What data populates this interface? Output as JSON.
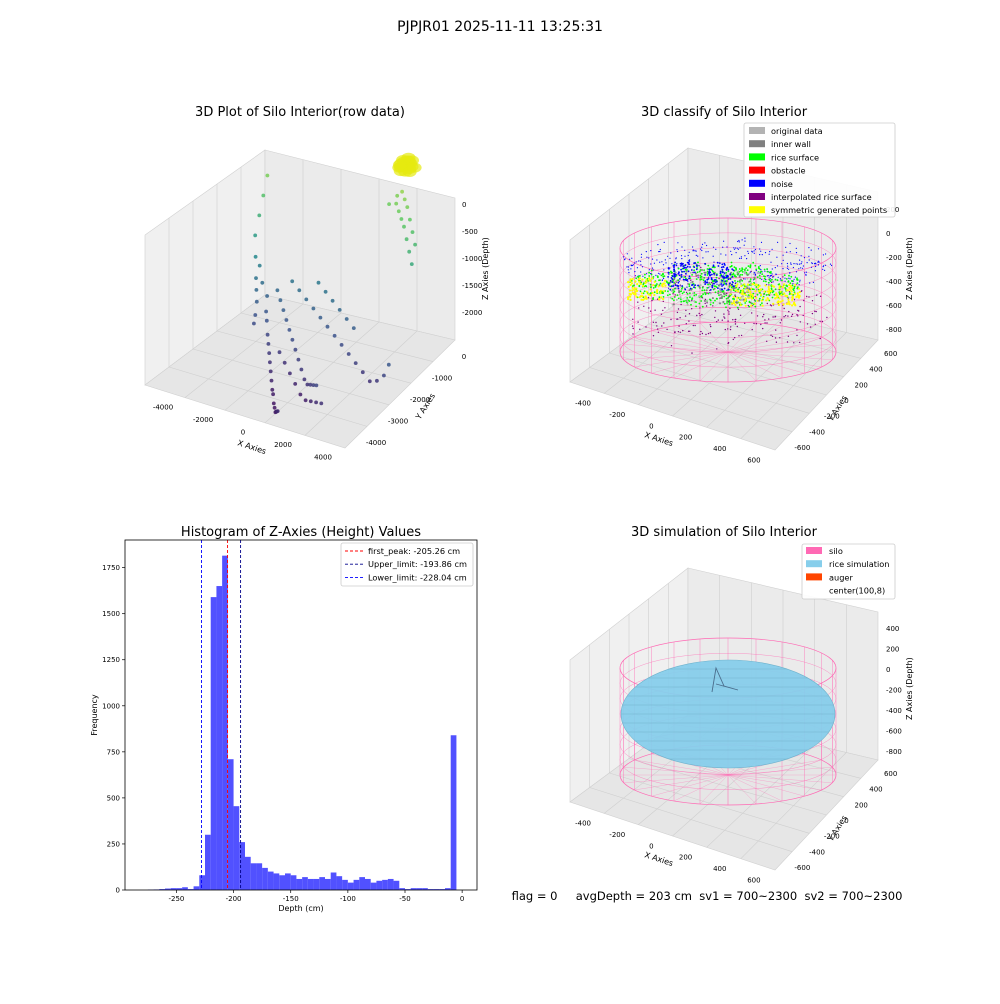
{
  "figure": {
    "suptitle": "PJPJR01 2025-11-11 13:25:31",
    "status_line": "flag = 0     avgDepth = 203 cm  sv1 = 700~2300  sv2 = 700~2300"
  },
  "chart_data": [
    {
      "id": "raw3d",
      "type": "scatter",
      "title": "3D Plot of Silo Interior(row data)",
      "xlabel": "X Axies",
      "ylabel": "Y Axies",
      "zlabel": "Z Axies (Depth)",
      "x_ticks": [
        "-4000",
        "-2000",
        "0",
        "2000",
        "4000"
      ],
      "y_ticks": [
        "-4000",
        "-3000",
        "-2000",
        "-1000",
        "0"
      ],
      "z_ticks": [
        "0",
        "-500",
        "-1000",
        "-1500",
        "-2000"
      ],
      "zlim": [
        -2300,
        100
      ],
      "colormap": "viridis",
      "points": [
        [
          -3200,
          600,
          -400
        ],
        [
          -3300,
          500,
          -600
        ],
        [
          -3400,
          400,
          -800
        ],
        [
          -3500,
          300,
          -1000
        ],
        [
          -3400,
          200,
          -1200
        ],
        [
          -3300,
          100,
          -1400
        ],
        [
          -3200,
          0,
          -1500
        ],
        [
          -3100,
          -100,
          -1600
        ],
        [
          -3000,
          -300,
          -1700
        ],
        [
          -2900,
          -500,
          -1750
        ],
        [
          -3300,
          300,
          -1300
        ],
        [
          -3100,
          200,
          -1450
        ],
        [
          -2800,
          100,
          -1550
        ],
        [
          -2600,
          -200,
          -1650
        ],
        [
          -2400,
          -400,
          -1700
        ],
        [
          -2200,
          -600,
          -1800
        ],
        [
          -2000,
          -800,
          -1850
        ],
        [
          -1800,
          -1000,
          -1900
        ],
        [
          -1600,
          -1200,
          -1950
        ],
        [
          -1400,
          -1400,
          -2000
        ],
        [
          -1200,
          -1600,
          -2050
        ],
        [
          -1000,
          -1800,
          -2100
        ],
        [
          -800,
          -2000,
          -2100
        ],
        [
          -600,
          -2200,
          -2150
        ],
        [
          -400,
          -2400,
          -2150
        ],
        [
          -200,
          -2600,
          -2150
        ],
        [
          0,
          -2800,
          -2100
        ],
        [
          200,
          -3000,
          -2050
        ],
        [
          400,
          -3200,
          -2000
        ],
        [
          -2500,
          300,
          -1500
        ],
        [
          -2200,
          100,
          -1550
        ],
        [
          -1900,
          -100,
          -1600
        ],
        [
          -1600,
          -300,
          -1650
        ],
        [
          -1300,
          -500,
          -1700
        ],
        [
          -1000,
          -700,
          -1750
        ],
        [
          -700,
          -900,
          -1800
        ],
        [
          -400,
          -1100,
          -1850
        ],
        [
          -100,
          -1300,
          -1900
        ],
        [
          200,
          -1500,
          -1950
        ],
        [
          500,
          -1700,
          -1950
        ],
        [
          800,
          -1900,
          -1900
        ],
        [
          1100,
          -2100,
          -1850
        ],
        [
          1400,
          -2300,
          -1800
        ],
        [
          -2000,
          500,
          -1400
        ],
        [
          -1600,
          400,
          -1450
        ],
        [
          -1200,
          300,
          -1500
        ],
        [
          -800,
          200,
          -1550
        ],
        [
          -400,
          100,
          -1600
        ],
        [
          0,
          0,
          -1650
        ],
        [
          400,
          -100,
          -1700
        ],
        [
          800,
          -200,
          -1750
        ],
        [
          1200,
          -300,
          -1800
        ],
        [
          1600,
          -400,
          -1850
        ],
        [
          2000,
          -500,
          -1900
        ],
        [
          2400,
          -600,
          -1950
        ],
        [
          2800,
          -700,
          -1900
        ],
        [
          3200,
          -800,
          -1800
        ],
        [
          3500,
          -900,
          -1650
        ],
        [
          -1500,
          -800,
          -1900
        ],
        [
          -1100,
          -1000,
          -1950
        ],
        [
          -700,
          -1200,
          -2000
        ],
        [
          -300,
          -1400,
          -2050
        ],
        [
          100,
          -1600,
          -2100
        ],
        [
          500,
          -1800,
          -2100
        ],
        [
          900,
          -2000,
          -2050
        ],
        [
          1300,
          -2200,
          -2000
        ],
        [
          1700,
          -2400,
          -1950
        ],
        [
          -900,
          600,
          -1350
        ],
        [
          -500,
          500,
          -1400
        ],
        [
          -100,
          400,
          -1450
        ],
        [
          300,
          300,
          -1500
        ],
        [
          700,
          200,
          -1550
        ],
        [
          1100,
          100,
          -1600
        ],
        [
          2100,
          1200,
          -400
        ],
        [
          2300,
          1100,
          -450
        ],
        [
          2500,
          1000,
          -500
        ],
        [
          2700,
          900,
          -550
        ],
        [
          2900,
          800,
          -650
        ],
        [
          3100,
          700,
          -750
        ],
        [
          3300,
          600,
          -850
        ],
        [
          2200,
          1400,
          -300
        ],
        [
          2400,
          1300,
          -350
        ],
        [
          2600,
          1200,
          -400
        ],
        [
          1900,
          1500,
          -380
        ],
        [
          2800,
          1100,
          -500
        ],
        [
          3000,
          1000,
          -600
        ],
        [
          1700,
          1300,
          -450
        ],
        [
          3200,
          900,
          -700
        ]
      ],
      "blob_points": [
        [
          2000,
          1600,
          -50
        ],
        [
          2100,
          1650,
          -30
        ],
        [
          2200,
          1700,
          -20
        ],
        [
          2300,
          1650,
          -10
        ],
        [
          2400,
          1600,
          -20
        ],
        [
          2500,
          1550,
          -40
        ],
        [
          2050,
          1500,
          -70
        ],
        [
          2150,
          1550,
          -60
        ],
        [
          2250,
          1600,
          -50
        ],
        [
          2350,
          1550,
          -40
        ],
        [
          2450,
          1500,
          -60
        ],
        [
          1950,
          1550,
          -90
        ],
        [
          2100,
          1450,
          -100
        ],
        [
          2300,
          1450,
          -90
        ],
        [
          2500,
          1450,
          -80
        ],
        [
          2200,
          1750,
          0
        ],
        [
          2400,
          1700,
          -5
        ],
        [
          2000,
          1700,
          -30
        ],
        [
          2600,
          1600,
          -50
        ],
        [
          1900,
          1650,
          -80
        ]
      ]
    },
    {
      "id": "classify3d",
      "type": "scatter",
      "title": "3D classify of Silo Interior",
      "xlabel": "X Axies",
      "ylabel": "Y Axies",
      "zlabel": "Z Axies (Depth)",
      "x_ticks": [
        "-400",
        "-200",
        "0",
        "200",
        "400",
        "600"
      ],
      "y_ticks": [
        "-600",
        "-400",
        "-200",
        "0",
        "200",
        "400",
        "600"
      ],
      "z_ticks": [
        "200",
        "0",
        "-200",
        "-400",
        "-600",
        "-800"
      ],
      "legend_position": "top-right",
      "legend": [
        {
          "label": "original data",
          "color": "#b3b3b3"
        },
        {
          "label": "inner wall",
          "color": "#808080"
        },
        {
          "label": "rice surface",
          "color": "#00ff00"
        },
        {
          "label": "obstacle",
          "color": "#ff0000"
        },
        {
          "label": "noise",
          "color": "#0000ff"
        },
        {
          "label": "interpolated rice surface",
          "color": "#800080"
        },
        {
          "label": "symmetric generated points",
          "color": "#ffff00"
        }
      ],
      "silo_color": "#ff69b4"
    },
    {
      "id": "hist",
      "type": "bar",
      "title": "Histogram of Z-Axies (Height) Values",
      "xlabel": "Depth (cm)",
      "ylabel": "Frequency",
      "xlim": [
        -295,
        13
      ],
      "ylim": [
        0,
        1900
      ],
      "x_ticks": [
        -250,
        -200,
        -150,
        -100,
        -50,
        0
      ],
      "y_ticks": [
        0,
        250,
        500,
        750,
        1000,
        1250,
        1500,
        1750
      ],
      "bin_width": 5,
      "bins": [
        [
          -280,
          0
        ],
        [
          -275,
          2
        ],
        [
          -270,
          3
        ],
        [
          -265,
          5
        ],
        [
          -260,
          8
        ],
        [
          -255,
          10
        ],
        [
          -250,
          10
        ],
        [
          -245,
          15
        ],
        [
          -240,
          5
        ],
        [
          -235,
          20
        ],
        [
          -230,
          80
        ],
        [
          -225,
          300
        ],
        [
          -220,
          1590
        ],
        [
          -215,
          1650
        ],
        [
          -210,
          1815
        ],
        [
          -205,
          710
        ],
        [
          -200,
          455
        ],
        [
          -195,
          260
        ],
        [
          -190,
          180
        ],
        [
          -185,
          145
        ],
        [
          -180,
          145
        ],
        [
          -175,
          120
        ],
        [
          -170,
          100
        ],
        [
          -165,
          90
        ],
        [
          -160,
          80
        ],
        [
          -155,
          90
        ],
        [
          -150,
          80
        ],
        [
          -145,
          60
        ],
        [
          -140,
          70
        ],
        [
          -135,
          60
        ],
        [
          -130,
          60
        ],
        [
          -125,
          70
        ],
        [
          -120,
          60
        ],
        [
          -115,
          95
        ],
        [
          -110,
          75
        ],
        [
          -105,
          55
        ],
        [
          -100,
          40
        ],
        [
          -95,
          55
        ],
        [
          -90,
          70
        ],
        [
          -85,
          60
        ],
        [
          -80,
          40
        ],
        [
          -75,
          50
        ],
        [
          -70,
          55
        ],
        [
          -65,
          60
        ],
        [
          -60,
          50
        ],
        [
          -55,
          10
        ],
        [
          -50,
          5
        ],
        [
          -45,
          10
        ],
        [
          -40,
          10
        ],
        [
          -35,
          10
        ],
        [
          -30,
          5
        ],
        [
          -25,
          5
        ],
        [
          -20,
          5
        ],
        [
          -15,
          10
        ],
        [
          -10,
          840
        ]
      ],
      "bar_color": "#3333ff",
      "vlines": [
        {
          "label": "first_peak: -205.26 cm",
          "x": -205.26,
          "color": "#ff0000"
        },
        {
          "label": "Upper_limit: -193.86 cm",
          "x": -193.86,
          "color": "#00008b"
        },
        {
          "label": "Lower_limit: -228.04 cm",
          "x": -228.04,
          "color": "#0000ff"
        }
      ],
      "legend_position": "top-right"
    },
    {
      "id": "sim3d",
      "type": "scatter",
      "title": "3D simulation of Silo Interior",
      "xlabel": "X Axies",
      "ylabel": "Y Axies",
      "zlabel": "Z Axies (Depth)",
      "x_ticks": [
        "-400",
        "-200",
        "0",
        "200",
        "400",
        "600"
      ],
      "y_ticks": [
        "-600",
        "-400",
        "-200",
        "0",
        "200",
        "400",
        "600"
      ],
      "z_ticks": [
        "400",
        "200",
        "0",
        "-200",
        "-400",
        "-600",
        "-800"
      ],
      "legend_position": "top-right",
      "legend": [
        {
          "label": "silo",
          "color": "#ff69b4"
        },
        {
          "label": "rice simulation",
          "color": "#87ceeb"
        },
        {
          "label": "auger",
          "color": "#ff4500"
        },
        {
          "label": "center(100,8)",
          "color": "#ffffff"
        }
      ]
    }
  ]
}
